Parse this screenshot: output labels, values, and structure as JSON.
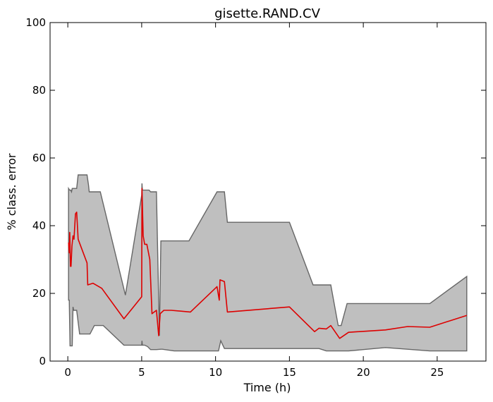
{
  "chart_data": {
    "type": "line",
    "title": "gisette.RAND.CV",
    "xlabel": "Time (h)",
    "ylabel": "% class. error",
    "xlim": [
      -1.2,
      28.3
    ],
    "ylim": [
      0,
      100
    ],
    "xticks": [
      0,
      5,
      10,
      15,
      20,
      25
    ],
    "yticks": [
      0,
      20,
      40,
      60,
      80,
      100
    ],
    "grid": false,
    "colors": {
      "band_fill": "#bfbfbf",
      "band_edge": "#666666",
      "line": "#dd0000"
    },
    "band": {
      "upper": [
        [
          0.05,
          51
        ],
        [
          0.12,
          50.5
        ],
        [
          0.2,
          50.5
        ],
        [
          0.25,
          50
        ],
        [
          0.3,
          51
        ],
        [
          0.6,
          51
        ],
        [
          0.7,
          55
        ],
        [
          1.3,
          55
        ],
        [
          1.4,
          52
        ],
        [
          1.45,
          50
        ],
        [
          2.2,
          50
        ],
        [
          3.9,
          19.5
        ],
        [
          5.0,
          49
        ],
        [
          5.02,
          52.5
        ],
        [
          5.05,
          50.5
        ],
        [
          5.5,
          50.5
        ],
        [
          5.6,
          50
        ],
        [
          6.0,
          50
        ],
        [
          6.2,
          7.5
        ],
        [
          6.3,
          35.5
        ],
        [
          8.2,
          35.5
        ],
        [
          10.1,
          50
        ],
        [
          10.6,
          50
        ],
        [
          10.8,
          41
        ],
        [
          15.0,
          41
        ],
        [
          16.6,
          22.5
        ],
        [
          17.8,
          22.5
        ],
        [
          18.3,
          10.5
        ],
        [
          18.5,
          10.5
        ],
        [
          18.9,
          17
        ],
        [
          24.5,
          17
        ],
        [
          27.0,
          25
        ]
      ],
      "lower": [
        [
          27.0,
          3
        ],
        [
          24.5,
          3
        ],
        [
          21.5,
          4
        ],
        [
          19.0,
          3
        ],
        [
          17.5,
          3
        ],
        [
          17.0,
          3.7
        ],
        [
          10.6,
          3.7
        ],
        [
          10.35,
          6
        ],
        [
          10.2,
          3
        ],
        [
          7.2,
          3
        ],
        [
          6.4,
          3.5
        ],
        [
          6.3,
          3.5
        ],
        [
          6.0,
          3.4
        ],
        [
          5.6,
          3.4
        ],
        [
          5.4,
          4.3
        ],
        [
          5.2,
          4.7
        ],
        [
          5.05,
          4.7
        ],
        [
          5.02,
          6
        ],
        [
          5.0,
          4.7
        ],
        [
          3.8,
          4.7
        ],
        [
          2.4,
          10.5
        ],
        [
          1.8,
          10.5
        ],
        [
          1.5,
          8
        ],
        [
          0.8,
          8
        ],
        [
          0.6,
          15
        ],
        [
          0.4,
          15
        ],
        [
          0.35,
          16
        ],
        [
          0.3,
          4.5
        ],
        [
          0.15,
          4.5
        ],
        [
          0.1,
          18
        ],
        [
          0.05,
          18
        ]
      ]
    },
    "series": [
      {
        "points": [
          [
            0.05,
            35
          ],
          [
            0.1,
            32
          ],
          [
            0.13,
            38
          ],
          [
            0.18,
            28
          ],
          [
            0.22,
            28
          ],
          [
            0.28,
            34
          ],
          [
            0.35,
            37
          ],
          [
            0.42,
            36
          ],
          [
            0.52,
            43.5
          ],
          [
            0.6,
            44
          ],
          [
            0.7,
            36
          ],
          [
            1.3,
            29
          ],
          [
            1.35,
            22.5
          ],
          [
            1.7,
            23
          ],
          [
            2.3,
            21.5
          ],
          [
            3.8,
            12.5
          ],
          [
            5.0,
            19
          ],
          [
            5.02,
            51
          ],
          [
            5.1,
            37
          ],
          [
            5.2,
            34.5
          ],
          [
            5.35,
            34.5
          ],
          [
            5.55,
            30
          ],
          [
            5.7,
            14
          ],
          [
            6.0,
            15
          ],
          [
            6.15,
            7.5
          ],
          [
            6.25,
            14
          ],
          [
            6.5,
            15
          ],
          [
            7.0,
            15
          ],
          [
            8.3,
            14.5
          ],
          [
            10.1,
            22
          ],
          [
            10.25,
            18
          ],
          [
            10.3,
            24
          ],
          [
            10.6,
            23.5
          ],
          [
            10.8,
            14.5
          ],
          [
            15.0,
            16
          ],
          [
            16.7,
            8.7
          ],
          [
            17.0,
            9.7
          ],
          [
            17.5,
            9.5
          ],
          [
            17.8,
            10.5
          ],
          [
            18.4,
            6.7
          ],
          [
            19.0,
            8.5
          ],
          [
            21.5,
            9.2
          ],
          [
            23.0,
            10.2
          ],
          [
            24.5,
            10
          ],
          [
            27.0,
            13.5
          ]
        ]
      }
    ]
  }
}
